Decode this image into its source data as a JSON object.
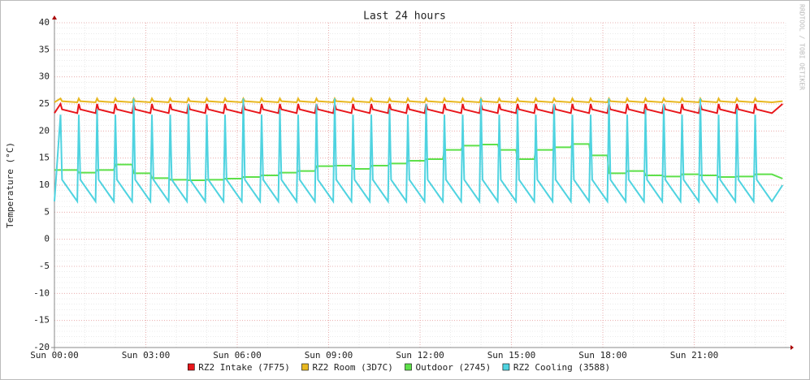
{
  "chart_data": {
    "type": "line",
    "title": "Last 24 hours",
    "y_label": "Temperature (°C)",
    "watermark": "RRDTOOL / TOBI OETIKER",
    "x": [
      0,
      0.2,
      0.25,
      0.75,
      0.8,
      0.85,
      1.35,
      1.4,
      1.45,
      1.95,
      2.0,
      2.05,
      2.55,
      2.6,
      2.65,
      3.15,
      3.2,
      3.25,
      3.75,
      3.8,
      3.85,
      4.35,
      4.4,
      4.45,
      4.95,
      5.0,
      5.05,
      5.55,
      5.6,
      5.65,
      6.15,
      6.2,
      6.25,
      6.75,
      6.8,
      6.85,
      7.35,
      7.4,
      7.45,
      7.95,
      8.0,
      8.05,
      8.55,
      8.6,
      8.65,
      9.15,
      9.2,
      9.25,
      9.75,
      9.8,
      9.85,
      10.35,
      10.4,
      10.45,
      10.95,
      11.0,
      11.05,
      11.55,
      11.6,
      11.65,
      12.15,
      12.2,
      12.25,
      12.75,
      12.8,
      12.85,
      13.35,
      13.4,
      13.45,
      13.95,
      14.0,
      14.05,
      14.55,
      14.6,
      14.65,
      15.15,
      15.2,
      15.25,
      15.75,
      15.8,
      15.85,
      16.35,
      16.4,
      16.45,
      16.95,
      17.0,
      17.05,
      17.55,
      17.6,
      17.65,
      18.15,
      18.2,
      18.25,
      18.75,
      18.8,
      18.85,
      19.35,
      19.4,
      19.45,
      19.95,
      20.0,
      20.05,
      20.55,
      20.6,
      20.65,
      21.15,
      21.2,
      21.25,
      21.75,
      21.8,
      21.85,
      22.35,
      22.4,
      22.45,
      22.95,
      23.0,
      23.05,
      23.55,
      23.9
    ],
    "series": [
      {
        "name": "RZ2 Intake (7F75)",
        "color": "#e8161b",
        "values": [
          23.3,
          25,
          24,
          23.3,
          25,
          24,
          23.3,
          25,
          24,
          23.3,
          25,
          24,
          23.3,
          25,
          24,
          23.3,
          25,
          24,
          23.3,
          25,
          24,
          23.3,
          25,
          24,
          23.3,
          25,
          24,
          23.3,
          25,
          24,
          23.3,
          25,
          24,
          23.3,
          25,
          24,
          23.3,
          25,
          24,
          23.3,
          25,
          24,
          23.3,
          25,
          24,
          23.3,
          25,
          24,
          23.3,
          25,
          24,
          23.3,
          25,
          24,
          23.3,
          25,
          24,
          23.3,
          25,
          24,
          23.3,
          25,
          24,
          23.3,
          25,
          24,
          23.3,
          25,
          24,
          23.3,
          25,
          24,
          23.3,
          25,
          24,
          23.3,
          25,
          24,
          23.3,
          25,
          24,
          23.3,
          25,
          24,
          23.3,
          25,
          24,
          23.3,
          25,
          24,
          23.3,
          25,
          24,
          23.3,
          25,
          24,
          23.3,
          25,
          24,
          23.3,
          25,
          24,
          23.3,
          25,
          24,
          23.3,
          25,
          24,
          23.3,
          25,
          24,
          23.3,
          25,
          24,
          23.3,
          25,
          24,
          23.3,
          25
        ]
      },
      {
        "name": "RZ2 Room (3D7C)",
        "color": "#e8b820",
        "values": [
          25.3,
          26,
          25.5,
          25.3,
          26,
          25.5,
          25.3,
          26,
          25.5,
          25.3,
          26,
          25.5,
          25.3,
          26,
          25.5,
          25.3,
          26,
          25.5,
          25.3,
          26,
          25.5,
          25.3,
          26,
          25.5,
          25.3,
          26,
          25.5,
          25.3,
          26,
          25.5,
          25.3,
          26,
          25.5,
          25.3,
          26,
          25.5,
          25.3,
          26,
          25.5,
          25.3,
          26,
          25.5,
          25.3,
          26,
          25.5,
          25.3,
          26,
          25.5,
          25.3,
          26,
          25.5,
          25.3,
          26,
          25.5,
          25.3,
          26,
          25.5,
          25.3,
          26,
          25.5,
          25.3,
          26,
          25.5,
          25.3,
          26,
          25.5,
          25.3,
          26,
          25.5,
          25.3,
          26,
          25.5,
          25.3,
          26,
          25.5,
          25.3,
          26,
          25.5,
          25.3,
          26,
          25.5,
          25.3,
          26,
          25.5,
          25.3,
          26,
          25.5,
          25.3,
          26,
          25.5,
          25.3,
          26,
          25.5,
          25.3,
          26,
          25.5,
          25.3,
          26,
          25.5,
          25.3,
          26,
          25.5,
          25.3,
          26,
          25.5,
          25.3,
          26,
          25.5,
          25.3,
          26,
          25.5,
          25.3,
          26,
          25.5,
          25.3,
          26,
          25.5,
          25.3,
          25.5
        ]
      },
      {
        "name": "Outdoor (2745)",
        "color": "#5ee04a",
        "values": [
          12.8,
          12.8,
          12.8,
          12.8,
          12.3,
          12.3,
          12.3,
          12.8,
          12.8,
          12.8,
          13.8,
          13.8,
          13.8,
          12.2,
          12.2,
          12.2,
          11.3,
          11.3,
          11.3,
          11,
          11,
          11,
          10.9,
          10.9,
          10.9,
          11,
          11,
          11,
          11.2,
          11.2,
          11.2,
          11.5,
          11.5,
          11.5,
          11.8,
          11.8,
          11.8,
          12.3,
          12.3,
          12.3,
          12.6,
          12.6,
          12.6,
          13.5,
          13.5,
          13.5,
          13.6,
          13.6,
          13.6,
          13,
          13,
          13,
          13.6,
          13.6,
          13.6,
          14,
          14,
          14,
          14.5,
          14.5,
          14.5,
          14.8,
          14.8,
          14.8,
          16.5,
          16.5,
          16.5,
          17.3,
          17.3,
          17.3,
          17.5,
          17.5,
          17.5,
          16.5,
          16.5,
          16.5,
          14.8,
          14.8,
          14.8,
          16.5,
          16.5,
          16.5,
          17,
          17,
          17,
          17.6,
          17.6,
          17.6,
          15.5,
          15.5,
          15.5,
          12.2,
          12.2,
          12.2,
          12.6,
          12.6,
          12.6,
          11.8,
          11.8,
          11.8,
          11.6,
          11.6,
          11.6,
          12,
          12,
          12,
          11.8,
          11.8,
          11.8,
          11.5,
          11.5,
          11.5,
          11.6,
          11.6,
          11.6,
          12,
          12,
          12,
          11.2
        ]
      },
      {
        "name": "RZ2 Cooling (3588)",
        "color": "#4fd3e0",
        "values": [
          7,
          23,
          11,
          7,
          23,
          11,
          7,
          24,
          11,
          7,
          23,
          11,
          7,
          26,
          11,
          7,
          23,
          11,
          7,
          23,
          11,
          7,
          25,
          11,
          7,
          23,
          11,
          7,
          23,
          11,
          7,
          26,
          11,
          7,
          23,
          11,
          7,
          24,
          11,
          7,
          23,
          11,
          7,
          25,
          11,
          7,
          26,
          11,
          7,
          23,
          11,
          7,
          23,
          11,
          7,
          24,
          11,
          7,
          23,
          11,
          7,
          25,
          11,
          7,
          23,
          11,
          7,
          23,
          11,
          7,
          26,
          11,
          7,
          23,
          11,
          7,
          24,
          11,
          7,
          23,
          11,
          7,
          25,
          11,
          7,
          23,
          11,
          7,
          23,
          11,
          7,
          26,
          11,
          7,
          23,
          11,
          7,
          24,
          11,
          7,
          25,
          11,
          7,
          23,
          11,
          7,
          26,
          11,
          7,
          23,
          11,
          7,
          24,
          11,
          7,
          23,
          11,
          7,
          10
        ]
      }
    ],
    "xlim": [
      0,
      24
    ],
    "xticks": [
      {
        "value": 0,
        "label": "Sun 00:00"
      },
      {
        "value": 3,
        "label": "Sun 03:00"
      },
      {
        "value": 6,
        "label": "Sun 06:00"
      },
      {
        "value": 9,
        "label": "Sun 09:00"
      },
      {
        "value": 12,
        "label": "Sun 12:00"
      },
      {
        "value": 15,
        "label": "Sun 15:00"
      },
      {
        "value": 18,
        "label": "Sun 18:00"
      },
      {
        "value": 21,
        "label": "Sun 21:00"
      }
    ],
    "ylim": [
      -20,
      40
    ],
    "yticks": [
      -20,
      -15,
      -10,
      -5,
      0,
      5,
      10,
      15,
      20,
      25,
      30,
      35,
      40
    ],
    "grid": true,
    "legend": "bottom"
  }
}
